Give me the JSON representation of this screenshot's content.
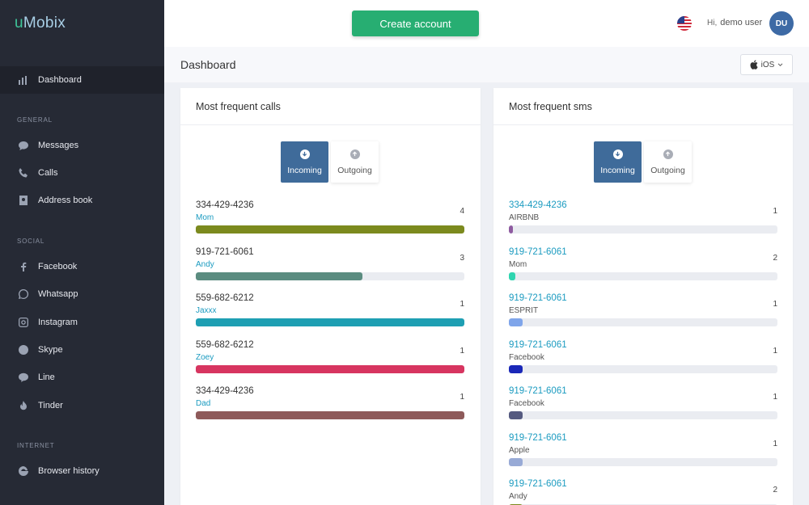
{
  "brand": {
    "prefix": "u",
    "name": "Mobix"
  },
  "sidebar": {
    "dashboard": "Dashboard",
    "sections": [
      {
        "label": "GENERAL",
        "items": [
          "Messages",
          "Calls",
          "Address book"
        ]
      },
      {
        "label": "SOCIAL",
        "items": [
          "Facebook",
          "Whatsapp",
          "Instagram",
          "Skype",
          "Line",
          "Tinder"
        ]
      },
      {
        "label": "INTERNET",
        "items": [
          "Browser history"
        ]
      }
    ]
  },
  "header": {
    "create_button": "Create account",
    "greeting": "Hi,",
    "user_name": "demo user",
    "avatar_initials": "DU"
  },
  "dashboard": {
    "title": "Dashboard",
    "platform_select": "iOS"
  },
  "calls_panel": {
    "title": "Most frequent calls",
    "toggle": {
      "incoming": "Incoming",
      "outgoing": "Outgoing"
    },
    "rows": [
      {
        "number": "334-429-4236",
        "name": "Mom",
        "count": "4",
        "fraction": 1.0,
        "color": "#7c8a1e"
      },
      {
        "number": "919-721-6061",
        "name": "Andy",
        "count": "3",
        "fraction": 0.62,
        "color": "#5b8c80"
      },
      {
        "number": "559-682-6212",
        "name": "Jaxxx",
        "count": "1",
        "fraction": 1.0,
        "color": "#1e9fb3"
      },
      {
        "number": "559-682-6212",
        "name": "Zoey",
        "count": "1",
        "fraction": 1.0,
        "color": "#d73560"
      },
      {
        "number": "334-429-4236",
        "name": "Dad",
        "count": "1",
        "fraction": 1.0,
        "color": "#8e5a5a"
      }
    ]
  },
  "sms_panel": {
    "title": "Most frequent sms",
    "toggle": {
      "incoming": "Incoming",
      "outgoing": "Outgoing"
    },
    "rows": [
      {
        "number": "334-429-4236",
        "name": "AIRBNB",
        "count": "1",
        "fraction": 0.015,
        "color": "#8e5ba0"
      },
      {
        "number": "919-721-6061",
        "name": "Mom",
        "count": "2",
        "fraction": 0.025,
        "color": "#2fd5b0"
      },
      {
        "number": "919-721-6061",
        "name": "ESPRIT",
        "count": "1",
        "fraction": 0.05,
        "color": "#7fa5ea"
      },
      {
        "number": "919-721-6061",
        "name": "Facebook",
        "count": "1",
        "fraction": 0.05,
        "color": "#1a28b8"
      },
      {
        "number": "919-721-6061",
        "name": "Facebook",
        "count": "1",
        "fraction": 0.05,
        "color": "#555a80"
      },
      {
        "number": "919-721-6061",
        "name": "Apple",
        "count": "1",
        "fraction": 0.05,
        "color": "#98aad6"
      },
      {
        "number": "919-721-6061",
        "name": "Andy",
        "count": "2",
        "fraction": 0.05,
        "color": "#7c8a1e"
      }
    ]
  }
}
